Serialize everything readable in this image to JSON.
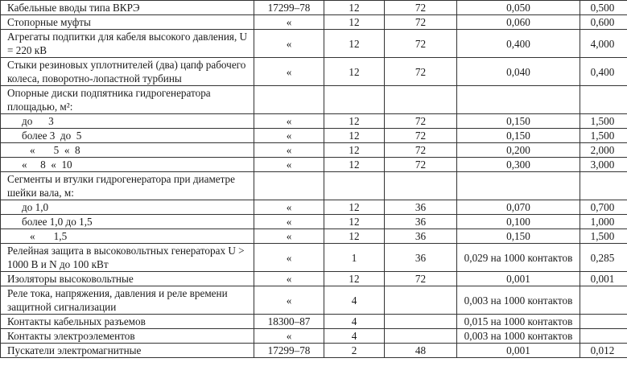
{
  "rows": [
    {
      "desc": "Кабельные вводы типа ВКРЭ",
      "standard": "17299–78",
      "c3": "12",
      "c4": "72",
      "c5": "0,050",
      "c6": "0,500",
      "lines": 1,
      "indent": 0
    },
    {
      "desc": "Стопорные муфты",
      "standard": "«",
      "c3": "12",
      "c4": "72",
      "c5": "0,060",
      "c6": "0,600",
      "lines": 1,
      "indent": 0
    },
    {
      "desc": "Агрегаты подпитки для кабеля высокого давления, U = 220 кВ",
      "standard": "«",
      "c3": "12",
      "c4": "72",
      "c5": "0,400",
      "c6": "4,000",
      "lines": 2,
      "indent": 0
    },
    {
      "desc": "Стыки резиновых уплотнителей (два) цапф рабочего колеса, поворотно-лопастной турбины",
      "standard": "«",
      "c3": "12",
      "c4": "72",
      "c5": "0,040",
      "c6": "0,400",
      "lines": 2,
      "indent": 0
    },
    {
      "desc": "Опорные диски подпятника гидрогенератора площадью, м²:",
      "standard": "",
      "c3": "",
      "c4": "",
      "c5": "",
      "c6": "",
      "lines": 2,
      "indent": 0
    },
    {
      "desc": "до      3",
      "standard": "«",
      "c3": "12",
      "c4": "72",
      "c5": "0,150",
      "c6": "1,500",
      "lines": 1,
      "indent": 1
    },
    {
      "desc": "более 3  до  5",
      "standard": "«",
      "c3": "12",
      "c4": "72",
      "c5": "0,150",
      "c6": "1,500",
      "lines": 1,
      "indent": 1
    },
    {
      "desc": "«       5  «  8",
      "standard": "«",
      "c3": "12",
      "c4": "72",
      "c5": "0,200",
      "c6": "2,000",
      "lines": 1,
      "indent": 2
    },
    {
      "desc": "«     8  «  10",
      "standard": "«",
      "c3": "12",
      "c4": "72",
      "c5": "0,300",
      "c6": "3,000",
      "lines": 1,
      "indent": 1
    },
    {
      "desc": "Сегменты и втулки гидрогенератора при диаметре шейки вала, м:",
      "standard": "",
      "c3": "",
      "c4": "",
      "c5": "",
      "c6": "",
      "lines": 2,
      "indent": 0
    },
    {
      "desc": "до 1,0",
      "standard": "«",
      "c3": "12",
      "c4": "36",
      "c5": "0,070",
      "c6": "0,700",
      "lines": 1,
      "indent": 1
    },
    {
      "desc": "более 1,0 до 1,5",
      "standard": "«",
      "c3": "12",
      "c4": "36",
      "c5": "0,100",
      "c6": "1,000",
      "lines": 1,
      "indent": 1
    },
    {
      "desc": "«       1,5",
      "standard": "«",
      "c3": "12",
      "c4": "36",
      "c5": "0,150",
      "c6": "1,500",
      "lines": 1,
      "indent": 2
    },
    {
      "desc": "Релейная защита в высоковольтных генераторах U > 1000 В и N до 100 кВт",
      "standard": "«",
      "c3": "1",
      "c4": "36",
      "c5": "0,029 на 1000 контактов",
      "c6": "0,285",
      "lines": 2,
      "indent": 0
    },
    {
      "desc": "Изоляторы высоковольтные",
      "standard": "«",
      "c3": "12",
      "c4": "72",
      "c5": "0,001",
      "c6": "0,001",
      "lines": 1,
      "indent": 0
    },
    {
      "desc": "Реле тока, напряжения, давления и реле времени защитной сигнализации",
      "standard": "«",
      "c3": "4",
      "c4": "",
      "c5": "0,003 на 1000 контактов",
      "c6": "",
      "lines": 2,
      "indent": 0
    },
    {
      "desc": "Контакты кабельных разъемов",
      "standard": "18300–87",
      "c3": "4",
      "c4": "",
      "c5": "0,015 на 1000 контактов",
      "c6": "",
      "lines": 1,
      "indent": 0
    },
    {
      "desc": "Контакты электроэлементов",
      "standard": "«",
      "c3": "4",
      "c4": "",
      "c5": "0,003 на 1000 контактов",
      "c6": "",
      "lines": 1,
      "indent": 0
    },
    {
      "desc": "Пускатели электромагнитные",
      "standard": "17299–78",
      "c3": "2",
      "c4": "48",
      "c5": "0,001",
      "c6": "0,012",
      "lines": 1,
      "indent": 0
    }
  ]
}
